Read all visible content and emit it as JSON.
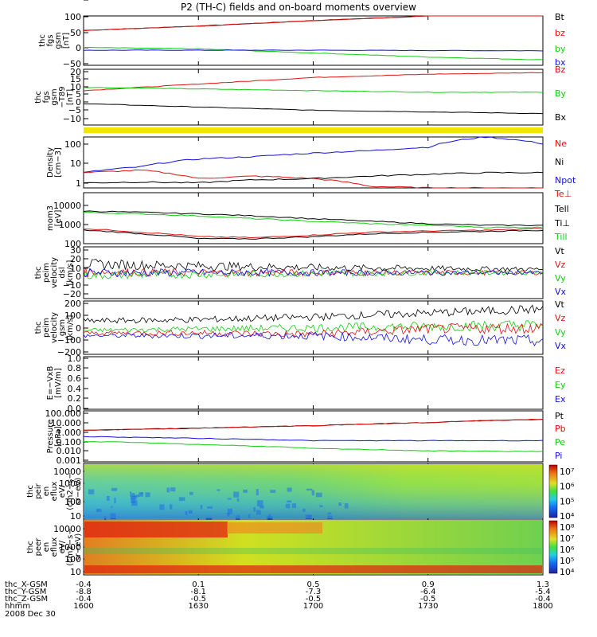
{
  "title": "P2 (TH-C) fields and on-board moments overview",
  "date": "2008 Dec 30",
  "orbit": {
    "labels": [
      "thc_X-GSM",
      "thc_Y-GSM",
      "thc_Z-GSM",
      "hhmm"
    ],
    "columns": [
      [
        "-0.4",
        "-8.8",
        "-0.4",
        "1600"
      ],
      [
        "0.1",
        "-8.1",
        "-0.5",
        "1630"
      ],
      [
        "0.5",
        "-7.3",
        "-0.5",
        "1700"
      ],
      [
        "0.9",
        "-6.4",
        "-0.5",
        "1730"
      ],
      [
        "1.3",
        "-5.4",
        "-0.4",
        "1800"
      ]
    ]
  },
  "colors": {
    "black": "#000000",
    "red": "#e01010",
    "green": "#10d010",
    "blue": "#1010e0",
    "yellow": "#f2e600"
  },
  "chart_data": [
    {
      "type": "line",
      "panel": "fgs-gsm",
      "ylabel": [
        "thc",
        "fgs",
        "gsm",
        "[nT]"
      ],
      "yticks": [
        "100",
        "50",
        "0",
        "−50"
      ],
      "ylim": [
        -75,
        105
      ],
      "legend": [
        {
          "name": "Bt",
          "color": "black"
        },
        {
          "name": "bz",
          "color": "red"
        },
        {
          "name": "by",
          "color": "green"
        },
        {
          "name": "bx",
          "color": "blue"
        }
      ],
      "x": [
        1600,
        1630,
        1700,
        1730,
        1800
      ],
      "series": [
        {
          "name": "Bt",
          "values": [
            52,
            68,
            88,
            105,
            125
          ]
        },
        {
          "name": "bz",
          "values": [
            52,
            68,
            88,
            105,
            125
          ]
        },
        {
          "name": "by",
          "values": [
            -10,
            -15,
            -30,
            -45,
            -55
          ]
        },
        {
          "name": "bx",
          "values": [
            -20,
            -20,
            -20,
            -21,
            -22
          ]
        }
      ]
    },
    {
      "type": "line",
      "panel": "fgs-gse-dc",
      "ylabel": [
        "thc",
        "fgs",
        "gsm",
        "−T89",
        "[nT]"
      ],
      "yticks": [
        "20",
        "15",
        "10",
        "5",
        "0",
        "−5",
        "−10"
      ],
      "ylim": [
        -13,
        21
      ],
      "legend": [
        {
          "name": "Bz",
          "color": "red"
        },
        {
          "name": "By",
          "color": "green"
        },
        {
          "name": "Bx",
          "color": "black"
        }
      ],
      "x": [
        1600,
        1630,
        1700,
        1730,
        1800
      ],
      "series": [
        {
          "name": "Bz",
          "values": [
            8,
            12,
            16,
            18,
            19
          ]
        },
        {
          "name": "By",
          "values": [
            10,
            9,
            8,
            7,
            7
          ]
        },
        {
          "name": "Bx",
          "values": [
            0,
            -2,
            -4,
            -5,
            -6
          ]
        }
      ]
    },
    {
      "type": "line",
      "panel": "density",
      "log": true,
      "ylabel": [
        "Density",
        "[cm−3]"
      ],
      "yticks": [
        "100",
        "10",
        "1"
      ],
      "ylim": [
        0.5,
        200
      ],
      "legend": [
        {
          "name": "Ne",
          "color": "red"
        },
        {
          "name": "Ni",
          "color": "black"
        },
        {
          "name": "Npot",
          "color": "blue"
        },
        {
          "name": "Te⊥",
          "color": "red"
        }
      ],
      "x": [
        1600,
        1615,
        1630,
        1645,
        1700,
        1715,
        1730,
        1745,
        1800
      ],
      "series": [
        {
          "name": "Npot",
          "values": [
            3,
            6,
            15,
            20,
            30,
            40,
            60,
            200,
            90
          ]
        },
        {
          "name": "Ne",
          "values": [
            3,
            4,
            1.5,
            2,
            1.5,
            0.6,
            0.5,
            0.5,
            0.5
          ]
        },
        {
          "name": "Ni",
          "values": [
            0.9,
            1,
            0.9,
            1.3,
            1.5,
            2,
            2.5,
            3,
            3
          ]
        }
      ]
    },
    {
      "type": "line",
      "panel": "temperature",
      "log": true,
      "ylabel": [
        "mom3",
        "[eV]"
      ],
      "yticks": [
        "10000",
        "1000",
        "100"
      ],
      "ylim": [
        30,
        40000
      ],
      "legend": [
        {
          "name": "Tell",
          "color": "black"
        },
        {
          "name": "Ti⊥",
          "color": "black"
        },
        {
          "name": "Till",
          "color": "green"
        }
      ],
      "x": [
        1600,
        1615,
        1630,
        1645,
        1700,
        1715,
        1730,
        1745,
        1800
      ],
      "series": [
        {
          "name": "Ti⊥",
          "values": [
            3000,
            2500,
            2000,
            1500,
            1000,
            700,
            500,
            400,
            400
          ]
        },
        {
          "name": "Till",
          "values": [
            2500,
            2000,
            1500,
            1000,
            700,
            500,
            400,
            300,
            300
          ]
        },
        {
          "name": "Te⊥",
          "values": [
            250,
            150,
            80,
            70,
            100,
            150,
            180,
            200,
            250
          ]
        },
        {
          "name": "Tell",
          "values": [
            200,
            120,
            60,
            60,
            80,
            120,
            150,
            170,
            200
          ]
        }
      ]
    },
    {
      "type": "line",
      "panel": "velocity-perp",
      "ylabel": [
        "thc",
        "peim",
        "velocity",
        "dsl",
        "[km/s]"
      ],
      "yticks": [
        "30",
        "20",
        "10",
        "0",
        "−10",
        "−20",
        "−30"
      ],
      "ylim": [
        -30,
        30
      ],
      "legend": [
        {
          "name": "Vt",
          "color": "black"
        },
        {
          "name": "Vz",
          "color": "red"
        },
        {
          "name": "Vy",
          "color": "green"
        },
        {
          "name": "Vx",
          "color": "blue"
        }
      ],
      "x": [
        1600,
        1630,
        1700,
        1730,
        1800
      ],
      "series": [
        {
          "name": "Vt",
          "values": [
            10,
            8,
            6,
            5,
            4
          ]
        },
        {
          "name": "Vz",
          "values": [
            1,
            0,
            0,
            0,
            0
          ]
        },
        {
          "name": "Vy",
          "values": [
            -3,
            -2,
            -1,
            0,
            0
          ]
        },
        {
          "name": "Vx",
          "values": [
            0,
            0,
            0,
            0,
            0
          ]
        }
      ]
    },
    {
      "type": "line",
      "panel": "velocity-gsm",
      "ylabel": [
        "thc",
        "peim",
        "velocity",
        "gsm",
        "[km/s]"
      ],
      "yticks": [
        "200",
        "100",
        "0",
        "−100",
        "−200"
      ],
      "ylim": [
        -200,
        200
      ],
      "legend": [
        {
          "name": "Vt",
          "color": "black"
        },
        {
          "name": "Vz",
          "color": "red"
        },
        {
          "name": "Vy",
          "color": "green"
        },
        {
          "name": "Vx",
          "color": "blue"
        }
      ],
      "x": [
        1600,
        1630,
        1700,
        1730,
        1800
      ],
      "series": [
        {
          "name": "Vt",
          "values": [
            50,
            60,
            80,
            110,
            140
          ]
        },
        {
          "name": "Vy",
          "values": [
            -20,
            -10,
            0,
            10,
            20
          ]
        },
        {
          "name": "Vz",
          "values": [
            -40,
            -40,
            -50,
            -10,
            0
          ]
        },
        {
          "name": "Vx",
          "values": [
            -60,
            -60,
            -60,
            -90,
            -100
          ]
        }
      ]
    },
    {
      "type": "line",
      "panel": "efield",
      "ylabel": [
        "E=−VxB",
        "[mV/m]"
      ],
      "yticks": [
        "1.0",
        "0.8",
        "0.6",
        "0.4",
        "0.2",
        "0.0"
      ],
      "ylim": [
        0,
        1
      ],
      "legend": [
        {
          "name": "Ez",
          "color": "red"
        },
        {
          "name": "Ey",
          "color": "green"
        },
        {
          "name": "Ex",
          "color": "blue"
        }
      ],
      "x": [],
      "series": []
    },
    {
      "type": "line",
      "panel": "pressure",
      "log": true,
      "ylabel": [
        "Pressure",
        "[nPa]"
      ],
      "yticks": [
        "100.000",
        "10.000",
        "1.000",
        "0.100",
        "0.010",
        "0.001"
      ],
      "ylim": [
        0.001,
        100
      ],
      "legend": [
        {
          "name": "Pt",
          "color": "black"
        },
        {
          "name": "Pb",
          "color": "red"
        },
        {
          "name": "Pe",
          "color": "green"
        },
        {
          "name": "Pi",
          "color": "blue"
        }
      ],
      "x": [
        1600,
        1630,
        1700,
        1730,
        1800
      ],
      "series": [
        {
          "name": "Pt",
          "values": [
            1.2,
            2,
            3.5,
            7,
            15
          ]
        },
        {
          "name": "Pb",
          "values": [
            1.2,
            2,
            3.5,
            7,
            15
          ]
        },
        {
          "name": "Pi",
          "values": [
            0.3,
            0.2,
            0.12,
            0.12,
            0.12
          ]
        },
        {
          "name": "Pe",
          "values": [
            0.1,
            0.05,
            0.02,
            0.012,
            0.01
          ]
        }
      ]
    },
    {
      "type": "heatmap",
      "panel": "ion-spectrogram",
      "ylabel": [
        "thc",
        "peir",
        "en",
        "eflux",
        "eV/",
        "(cm2−s−",
        "sr−eV)"
      ],
      "yticks": [
        "10000",
        "1000",
        "100",
        "10"
      ],
      "colorbar": [
        "10⁷",
        "10⁶",
        "10⁵",
        "10⁴"
      ]
    },
    {
      "type": "heatmap",
      "panel": "electron-spectrogram",
      "ylabel": [
        "thc",
        "peer",
        "en",
        "eflux",
        "eV/",
        "(cm2−s−",
        "sr−eV)"
      ],
      "yticks": [
        "10000",
        "1000",
        "100",
        "10"
      ],
      "colorbar": [
        "10⁸",
        "10⁷",
        "10⁶",
        "10⁵",
        "10⁴"
      ]
    }
  ]
}
